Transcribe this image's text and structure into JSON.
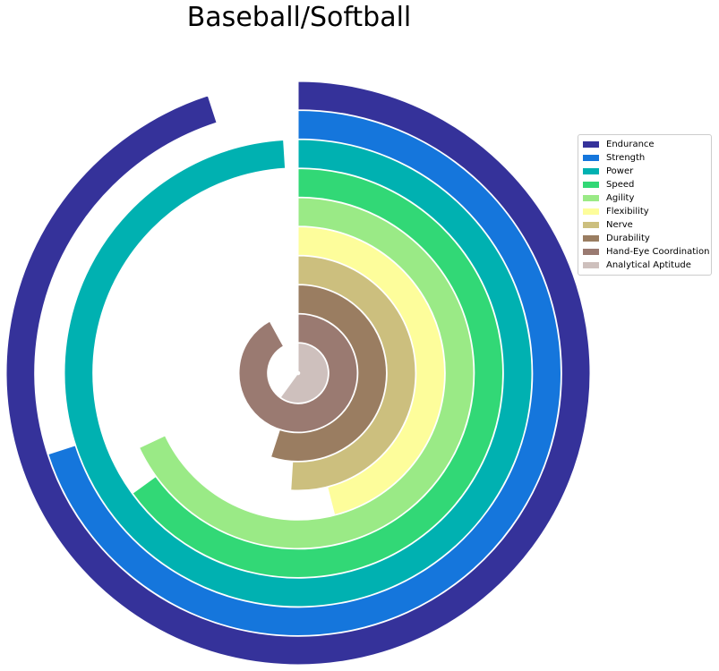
{
  "chart_data": {
    "type": "radial-bar",
    "title": "Baseball/Softball",
    "max_value": 1.0,
    "series": [
      {
        "name": "Endurance",
        "value": 0.95,
        "color": "#35329a"
      },
      {
        "name": "Strength",
        "value": 0.7,
        "color": "#1576dc"
      },
      {
        "name": "Power",
        "value": 0.99,
        "color": "#00b1b1"
      },
      {
        "name": "Speed",
        "value": 0.65,
        "color": "#32d876"
      },
      {
        "name": "Agility",
        "value": 0.68,
        "color": "#9aea86"
      },
      {
        "name": "Flexibility",
        "value": 0.46,
        "color": "#fdfd9b"
      },
      {
        "name": "Nerve",
        "value": 0.51,
        "color": "#ccbf7e"
      },
      {
        "name": "Durability",
        "value": 0.55,
        "color": "#9a7d61"
      },
      {
        "name": "Hand-Eye Coordination",
        "value": 0.92,
        "color": "#9a7a71"
      },
      {
        "name": "Analytical Aptitude",
        "value": 0.6,
        "color": "#cec0bd"
      }
    ],
    "legend_position": "right"
  }
}
